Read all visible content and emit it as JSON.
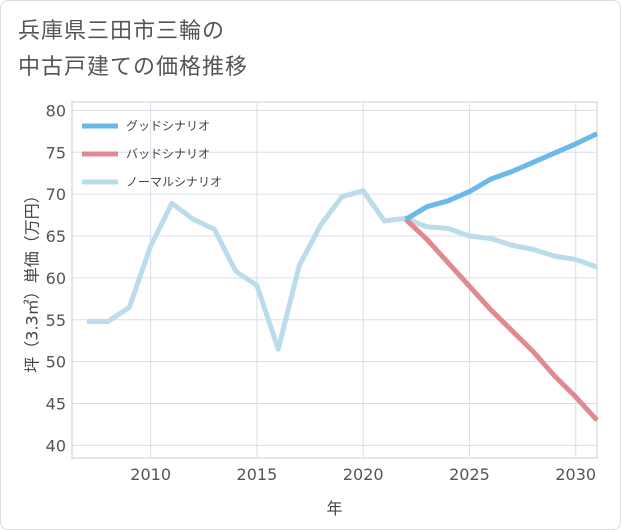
{
  "title_lines": [
    "兵庫県三田市三輪の",
    "中古戸建ての価格推移"
  ],
  "chart_data": {
    "type": "line",
    "title": "兵庫県三田市三輪の中古戸建ての価格推移",
    "xlabel": "年",
    "ylabel": "坪（3.3㎡）単価（万円）",
    "xlim": [
      2006.3,
      2031
    ],
    "ylim": [
      38.5,
      81
    ],
    "xticks": [
      2010,
      2015,
      2020,
      2025,
      2030
    ],
    "yticks": [
      40,
      45,
      50,
      55,
      60,
      65,
      70,
      75,
      80
    ],
    "grid": true,
    "legend_position": "top-left",
    "series": [
      {
        "name": "グッドシナリオ",
        "color": "#6cb8ea",
        "x": [
          2022,
          2023,
          2024,
          2025,
          2026,
          2027,
          2028,
          2029,
          2030,
          2031
        ],
        "y": [
          67.0,
          68.5,
          69.2,
          70.3,
          71.8,
          72.7,
          73.8,
          74.9,
          76.0,
          77.2
        ]
      },
      {
        "name": "バッドシナリオ",
        "color": "#df8a92",
        "x": [
          2022,
          2023,
          2024,
          2025,
          2026,
          2027,
          2028,
          2029,
          2030,
          2031
        ],
        "y": [
          67.0,
          64.6,
          61.8,
          59.0,
          56.2,
          53.7,
          51.2,
          48.3,
          45.8,
          43.0
        ]
      },
      {
        "name": "ノーマルシナリオ",
        "color": "#bcdcec",
        "x": [
          2007,
          2008,
          2009,
          2010,
          2011,
          2012,
          2013,
          2014,
          2015,
          2016,
          2017,
          2018,
          2019,
          2020,
          2021,
          2022,
          2023,
          2024,
          2025,
          2026,
          2027,
          2028,
          2029,
          2030,
          2031
        ],
        "y": [
          54.8,
          54.8,
          56.5,
          63.8,
          68.9,
          67.0,
          65.8,
          60.8,
          59.1,
          51.5,
          61.5,
          66.3,
          69.7,
          70.4,
          66.8,
          67.1,
          66.1,
          65.9,
          65.0,
          64.7,
          63.9,
          63.4,
          62.6,
          62.2,
          61.3
        ]
      }
    ]
  }
}
